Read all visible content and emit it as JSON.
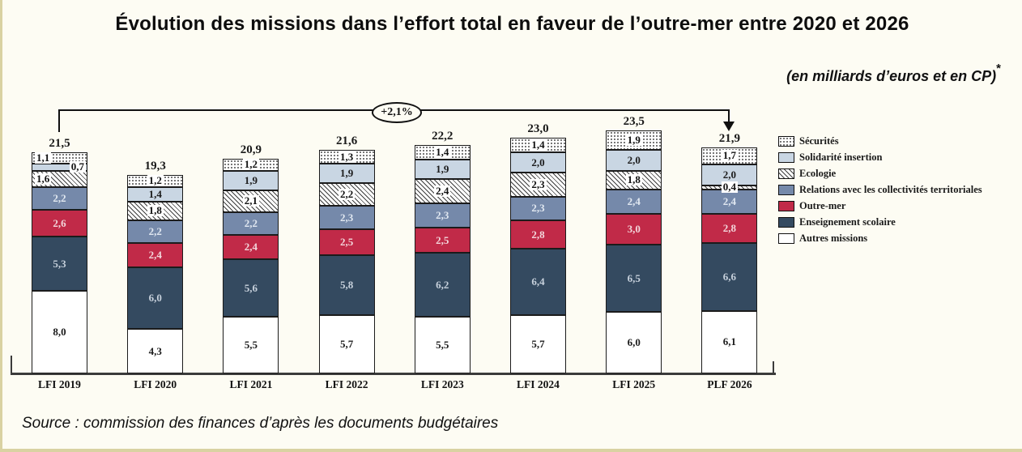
{
  "frame": {
    "background": "#fdfcf3",
    "border_color": "#d9d2a2"
  },
  "title": "Évolution des missions dans l’effort total en faveur de l’outre-mer entre 2020 et 2026",
  "subtitle": "(en milliards d’euros et en CP)",
  "subtitle_marker": "*",
  "annotation": "+2,1%",
  "source": "Source : commission des finances d’après les documents budgétaires",
  "chart_data": {
    "type": "bar",
    "stacked": true,
    "unit": "milliards d'euros (CP)",
    "grid": false,
    "legend_position": "right",
    "categories": [
      "LFI 2019",
      "LFI 2020",
      "LFI 2021",
      "LFI 2022",
      "LFI 2023",
      "LFI 2024",
      "LFI 2025",
      "PLF 2026"
    ],
    "totals": [
      "21,5",
      "19,3",
      "20,9",
      "21,6",
      "22,2",
      "23,0",
      "23,5",
      "21,9"
    ],
    "series": [
      {
        "name": "Sécurités",
        "fill": "#ffffff",
        "pattern": "dots",
        "label": "chip",
        "values": [
          1.1,
          1.2,
          1.2,
          1.3,
          1.4,
          1.4,
          1.9,
          1.7
        ]
      },
      {
        "name": "Solidarité insertion",
        "fill": "#c9d6e3",
        "label_color": "#1c1c1c",
        "values": [
          0.7,
          1.4,
          1.9,
          1.9,
          1.9,
          2.0,
          2.0,
          2.0
        ]
      },
      {
        "name": "Ecologie",
        "fill": "#ffffff",
        "pattern": "hatch",
        "label": "chip",
        "values": [
          1.6,
          1.8,
          2.1,
          2.2,
          2.4,
          2.3,
          1.8,
          0.4
        ]
      },
      {
        "name": "Relations avec les collectivités territoriales",
        "fill": "#7589aa",
        "label_color": "#e1e8f1",
        "values": [
          2.2,
          2.2,
          2.2,
          2.3,
          2.3,
          2.3,
          2.4,
          2.4
        ]
      },
      {
        "name": "Outre-mer",
        "fill": "#c12a48",
        "label_color": "#f2d6db",
        "values": [
          2.6,
          2.4,
          2.4,
          2.5,
          2.5,
          2.8,
          3.0,
          2.8
        ]
      },
      {
        "name": "Enseignement scolaire",
        "fill": "#344a60",
        "label_color": "#c7d1dc",
        "values": [
          5.3,
          6.0,
          5.6,
          5.8,
          6.2,
          6.4,
          6.5,
          6.6
        ]
      },
      {
        "name": "Autres missions",
        "fill": "#ffffff",
        "label_color": "#1c1c1c",
        "values": [
          8.0,
          4.3,
          5.5,
          5.7,
          5.5,
          5.7,
          6.0,
          6.1
        ]
      }
    ],
    "label_overrides": [
      {
        "series": "Sécurités",
        "category": "LFI 2019",
        "style": "chip-left"
      },
      {
        "series": "Solidarité insertion",
        "category": "LFI 2019",
        "style": "chip-right"
      },
      {
        "series": "Ecologie",
        "category": "LFI 2019",
        "style": "chip-left"
      }
    ]
  }
}
